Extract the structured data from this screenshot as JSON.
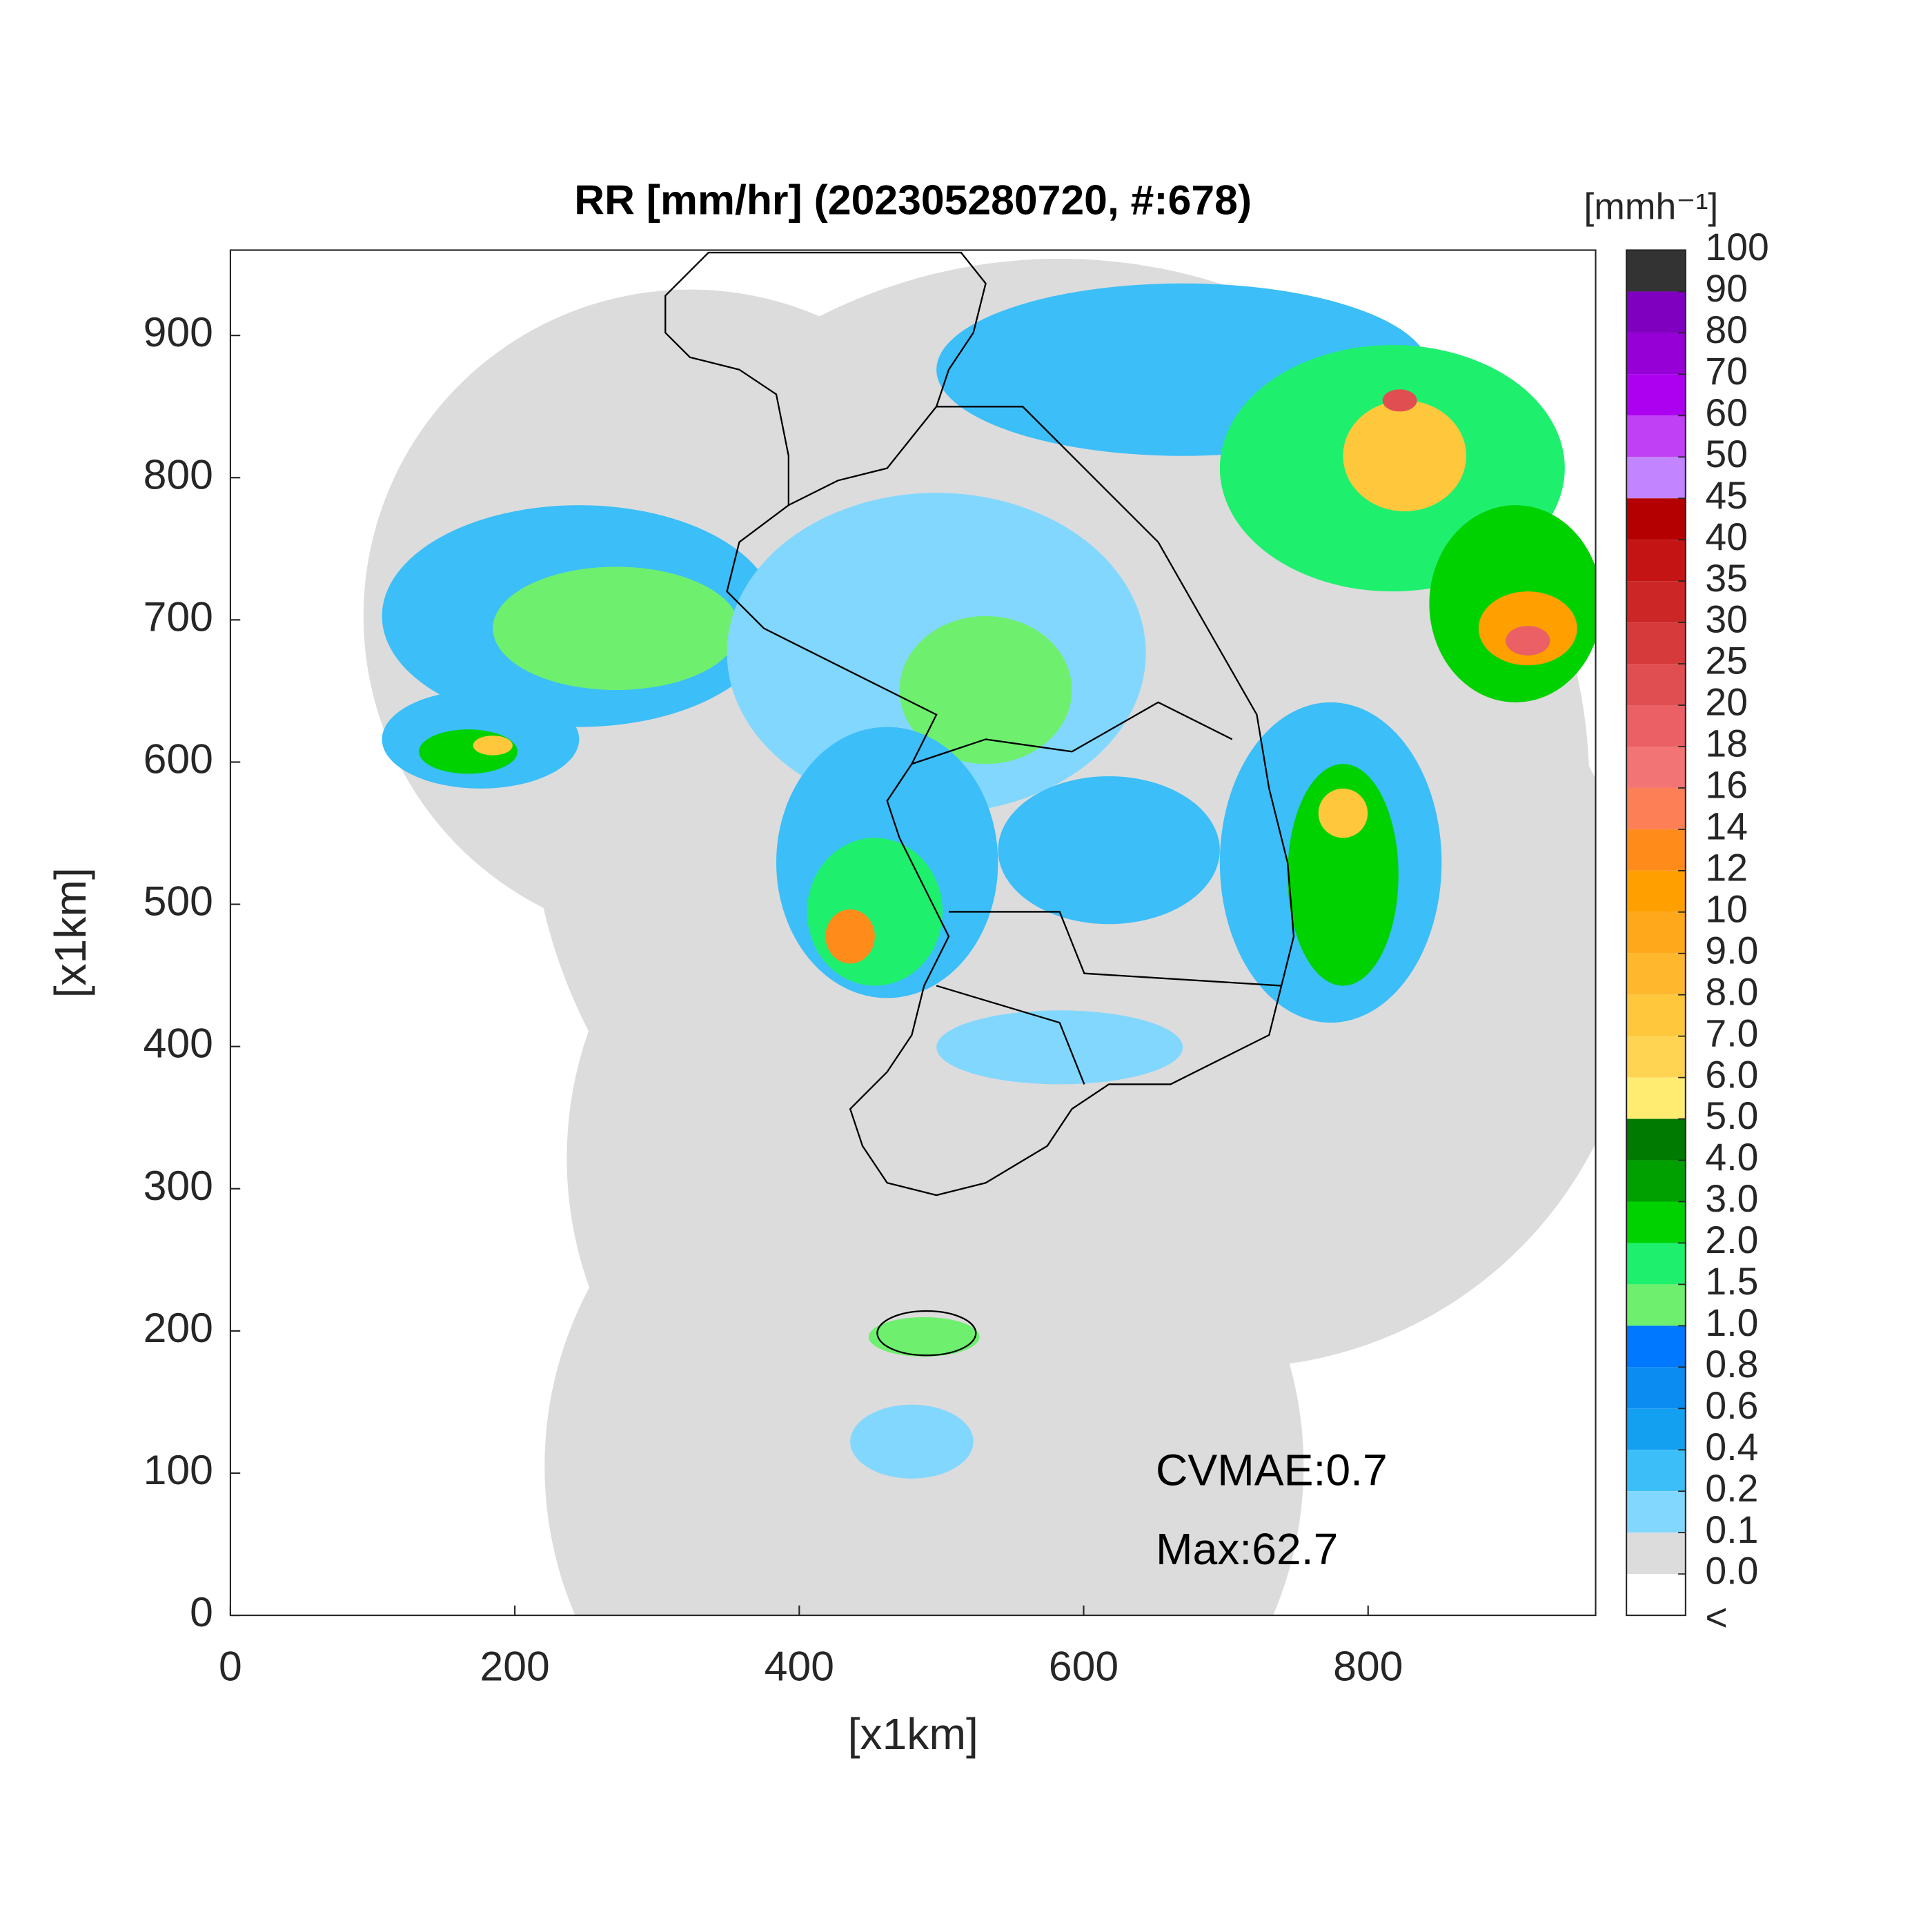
{
  "chart_data": {
    "type": "radar-map",
    "title": "RR [mm/hr] (202305280720, #:678)",
    "x_label": "[x1km]",
    "y_label": "[x1km]",
    "xlim": [
      0,
      960
    ],
    "ylim": [
      0,
      960
    ],
    "xticks": [
      0,
      200,
      400,
      600,
      800
    ],
    "yticks": [
      0,
      100,
      200,
      300,
      400,
      500,
      600,
      700,
      800,
      900
    ],
    "annotations": [
      "CVMAE:0.7",
      "Max:62.7"
    ],
    "colorbar": {
      "unit": "[mmh⁻¹]",
      "levels": [
        100,
        90,
        80,
        70,
        60,
        50,
        45,
        40,
        35,
        30,
        25,
        20,
        18,
        16,
        14,
        12,
        10,
        {
          "value": 9,
          "label": "9.0"
        },
        {
          "value": 8,
          "label": "8.0"
        },
        {
          "value": 7,
          "label": "7.0"
        },
        {
          "value": 6,
          "label": "6.0"
        },
        {
          "value": 5,
          "label": "5.0"
        },
        {
          "value": 4,
          "label": "4.0"
        },
        {
          "value": 3,
          "label": "3.0"
        },
        {
          "value": 2,
          "label": "2.0"
        },
        1.5,
        {
          "value": 1,
          "label": "1.0"
        },
        0.8,
        0.6,
        0.4,
        0.2,
        0.1,
        {
          "value": 0,
          "label": "0.0"
        }
      ],
      "under_label": "<",
      "colors": [
        "#333333",
        "#7f00bf",
        "#9600d6",
        "#ad00f0",
        "#c040f5",
        "#c384ff",
        "#b40000",
        "#c41414",
        "#cc2626",
        "#d63a3a",
        "#e04e52",
        "#ea6064",
        "#f27474",
        "#fc7f56",
        "#ff8c1a",
        "#ffa000",
        "#ffa81c",
        "#ffb82e",
        "#ffc83c",
        "#ffd452",
        "#ffec70",
        "#007a00",
        "#00a000",
        "#00d200",
        "#1ef06e",
        "#6ef06e",
        "#0078ff",
        "#0a8cf0",
        "#14a0f0",
        "#3cbef8",
        "#82d7ff",
        "#dcdcdc",
        "#ffffff"
      ]
    }
  }
}
